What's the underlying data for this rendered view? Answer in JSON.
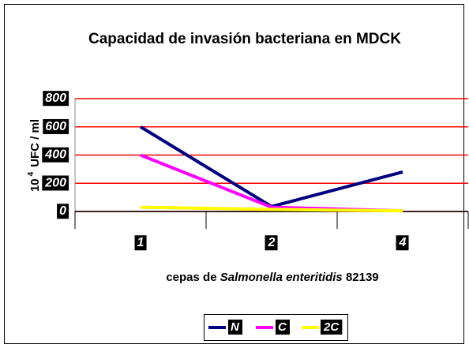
{
  "chart_data": {
    "type": "line",
    "title": "Capacidad de invasión bacteriana en MDCK",
    "y_label_parts": [
      "10",
      "4",
      "UFC / ml"
    ],
    "x_label_parts": [
      "cepas de",
      "Salmonella enteritidis",
      "82139"
    ],
    "categories": [
      "1",
      "2",
      "4"
    ],
    "series": [
      {
        "name": "N",
        "color": "#000080",
        "values": [
          600,
          35,
          280
        ]
      },
      {
        "name": "C",
        "color": "#ff00ff",
        "values": [
          400,
          30,
          5
        ]
      },
      {
        "name": "2C",
        "color": "#ffff00",
        "values": [
          30,
          15,
          5
        ]
      }
    ],
    "ylim": [
      0,
      800
    ],
    "yticks": [
      0,
      200,
      400,
      600,
      800
    ],
    "grid": true,
    "grid_color": "#ff0000"
  }
}
